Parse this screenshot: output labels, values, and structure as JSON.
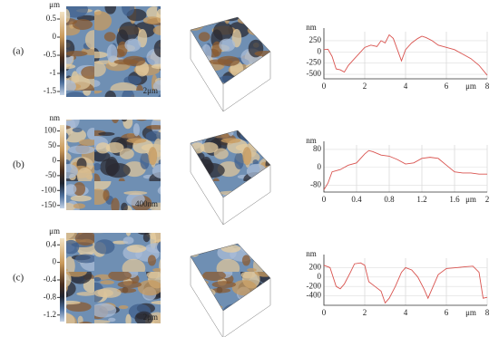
{
  "panels": [
    {
      "label": "(a)",
      "colorbar": {
        "unit": "μm",
        "clim": [
          -1.6,
          0.7
        ],
        "ticks": [
          0.5,
          0,
          -0.5,
          -1,
          -1.5
        ]
      },
      "scale_bar": "2μm",
      "profile": {
        "type": "line",
        "y_unit": "nm",
        "x_unit": "μm",
        "color": "#d9534f",
        "x": [
          0,
          0.2,
          0.4,
          0.6,
          0.8,
          1.0,
          1.2,
          1.5,
          1.8,
          2.0,
          2.3,
          2.6,
          2.8,
          3.0,
          3.2,
          3.4,
          3.6,
          3.8,
          4.0,
          4.3,
          4.6,
          4.8,
          5.0,
          5.3,
          5.6,
          6.0,
          6.4,
          6.8,
          7.2,
          7.6,
          8.0
        ],
        "values": [
          50,
          60,
          -100,
          -380,
          -400,
          -450,
          -300,
          -150,
          0,
          100,
          150,
          120,
          250,
          200,
          380,
          300,
          50,
          -200,
          50,
          200,
          300,
          350,
          320,
          250,
          150,
          100,
          50,
          -50,
          -150,
          -300,
          -520
        ],
        "xlim": [
          0,
          8
        ],
        "ylim": [
          -600,
          450
        ],
        "xticks": [
          0,
          2,
          4,
          6,
          8
        ],
        "yticks": [
          250,
          0,
          -250,
          -500
        ]
      }
    },
    {
      "label": "(b)",
      "colorbar": {
        "unit": "nm",
        "clim": [
          -160,
          120
        ],
        "ticks": [
          100,
          50,
          0,
          -50,
          -100,
          -150
        ]
      },
      "scale_bar": "400nm",
      "profile": {
        "type": "line",
        "y_unit": "nm",
        "x_unit": "μm",
        "color": "#d9534f",
        "x": [
          0,
          0.05,
          0.1,
          0.2,
          0.3,
          0.4,
          0.5,
          0.55,
          0.6,
          0.7,
          0.8,
          0.9,
          1.0,
          1.1,
          1.2,
          1.3,
          1.4,
          1.5,
          1.6,
          1.7,
          1.8,
          1.9,
          2.0
        ],
        "values": [
          -100,
          -70,
          -20,
          -10,
          10,
          20,
          60,
          75,
          70,
          55,
          50,
          35,
          15,
          20,
          40,
          45,
          40,
          10,
          -20,
          -25,
          -25,
          -30,
          -30
        ],
        "xlim": [
          0,
          2
        ],
        "ylim": [
          -110,
          100
        ],
        "xticks": [
          0,
          0.4,
          0.8,
          1.2,
          1.6,
          2
        ],
        "yticks": [
          80,
          0,
          -80
        ]
      }
    },
    {
      "label": "(c)",
      "colorbar": {
        "unit": "μm",
        "clim": [
          -1.35,
          0.55
        ],
        "ticks": [
          0.4,
          0,
          -0.4,
          -0.8,
          -1.2
        ]
      },
      "scale_bar": "2μm",
      "profile": {
        "type": "line",
        "y_unit": "nm",
        "x_unit": "μm",
        "color": "#d9534f",
        "x": [
          0,
          0.3,
          0.6,
          0.8,
          1.0,
          1.3,
          1.5,
          1.8,
          2.0,
          2.2,
          2.5,
          2.8,
          3.0,
          3.2,
          3.5,
          3.8,
          4.0,
          4.3,
          4.6,
          4.9,
          5.1,
          5.3,
          5.6,
          6.0,
          6.5,
          7.0,
          7.3,
          7.6,
          7.8,
          8.0
        ],
        "values": [
          250,
          200,
          -200,
          -250,
          -150,
          100,
          280,
          300,
          250,
          -100,
          -200,
          -300,
          -550,
          -450,
          -200,
          100,
          200,
          150,
          0,
          -250,
          -450,
          -250,
          50,
          180,
          200,
          220,
          230,
          100,
          -450,
          -430
        ],
        "xlim": [
          0,
          8
        ],
        "ylim": [
          -600,
          400
        ],
        "xticks": [
          0,
          2,
          4,
          6,
          8
        ],
        "yticks": [
          200,
          0,
          -200,
          -400
        ]
      }
    }
  ]
}
